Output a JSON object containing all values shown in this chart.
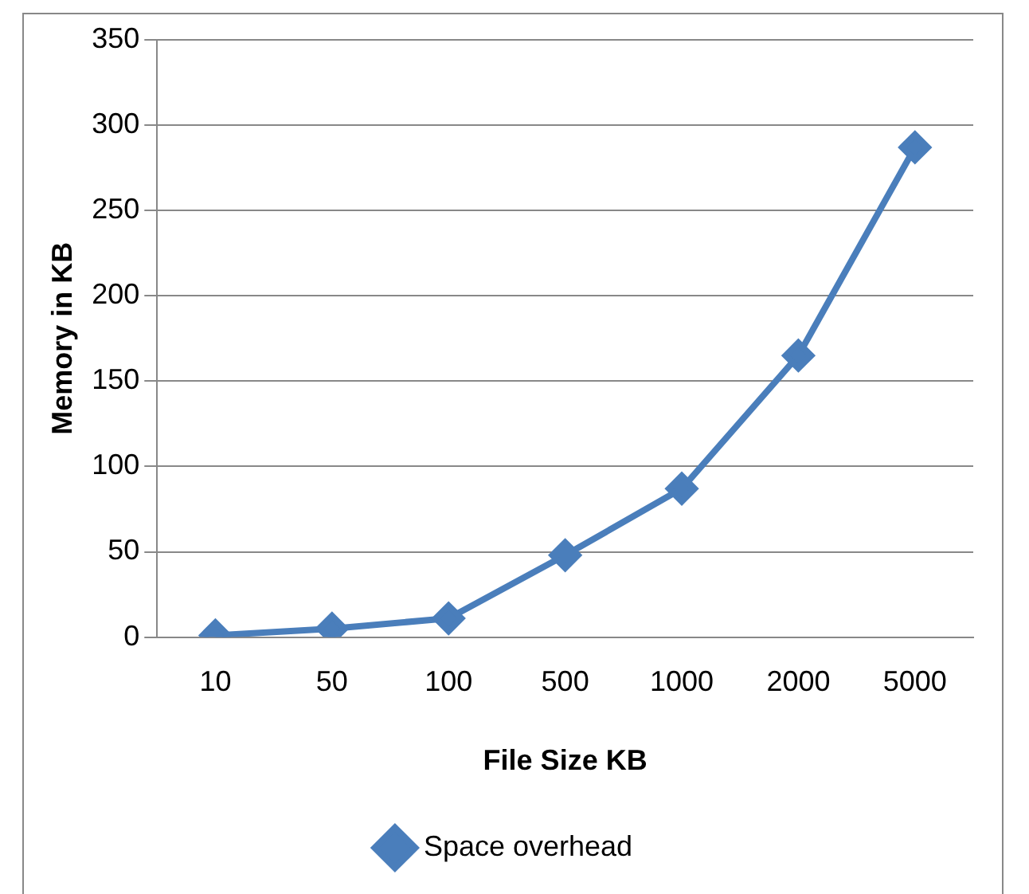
{
  "chart_data": {
    "type": "line",
    "xlabel": "File Size KB",
    "ylabel": "Memory in KB",
    "categories": [
      "10",
      "50",
      "100",
      "500",
      "1000",
      "2000",
      "5000"
    ],
    "series": [
      {
        "name": "Space overhead",
        "color": "#4a7ebb",
        "values": [
          1,
          5,
          11,
          48,
          87,
          165,
          287
        ]
      }
    ],
    "ylim": [
      0,
      350
    ],
    "yticks": [
      0,
      50,
      100,
      150,
      200,
      250,
      300,
      350
    ],
    "grid": "y",
    "legend": "bottom",
    "marker": "diamond",
    "line_style": "solid"
  }
}
